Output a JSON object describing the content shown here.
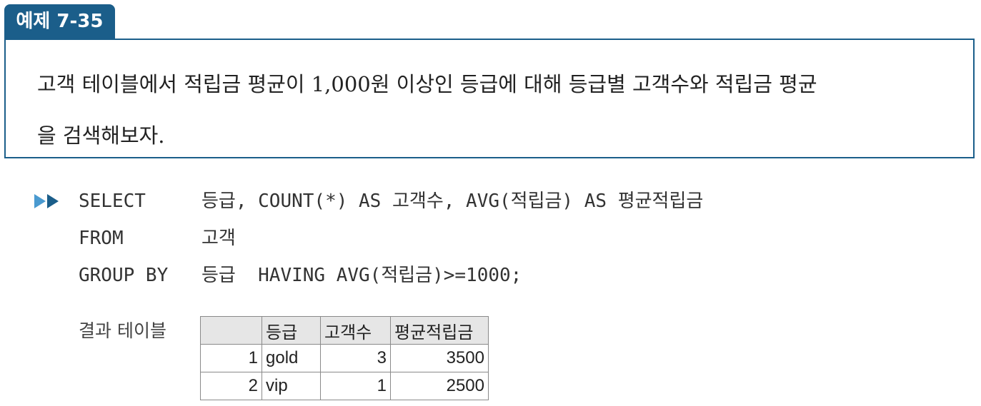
{
  "example": {
    "tab_label": "예제 7-35",
    "problem_line1": "고객 테이블에서 적립금 평균이 1,000원 이상인 등급에 대해 등급별 고객수와 적립금 평균",
    "problem_line2": "을 검색해보자."
  },
  "sql": {
    "lines": [
      {
        "keyword": "SELECT",
        "body": "등급, COUNT(*) AS 고객수, AVG(적립금) AS 평균적립금"
      },
      {
        "keyword": "FROM",
        "body": "고객"
      },
      {
        "keyword": "GROUP BY",
        "body": "등급  HAVING AVG(적립금)>=1000;"
      }
    ]
  },
  "result": {
    "label": "결과 테이블",
    "headers": [
      "",
      "등급",
      "고객수",
      "평균적립금"
    ],
    "rows": [
      [
        "1",
        "gold",
        "3",
        "3500"
      ],
      [
        "2",
        "vip",
        "1",
        "2500"
      ]
    ]
  },
  "colors": {
    "accent": "#1b5e8a",
    "arrow_light": "#4a9ad0",
    "header_bg": "#e6e6e6"
  }
}
